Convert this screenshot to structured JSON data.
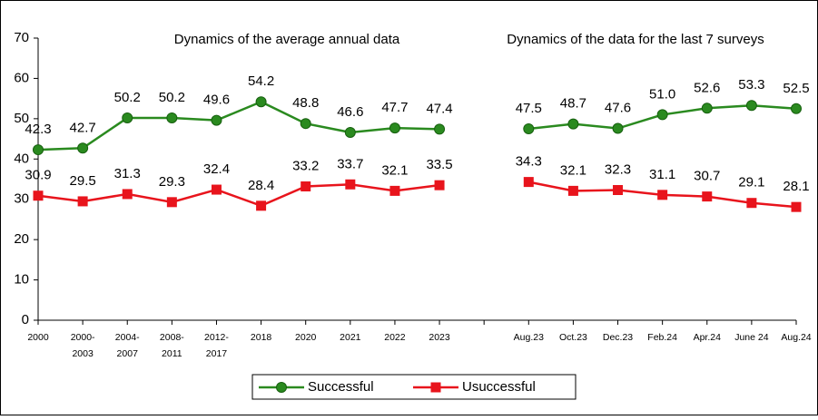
{
  "chart_data": {
    "type": "line",
    "annotations": [
      "Dynamics of the average annual data",
      "Dynamics of the data for the last 7 surveys"
    ],
    "categories": [
      "2000",
      "2000-\n2003",
      "2004-\n2007",
      "2008-\n2011",
      "2012-\n2017",
      "2018",
      "2020",
      "2021",
      "2022",
      "2023",
      null,
      "Aug.23",
      "Oct.23",
      "Dec.23",
      "Feb.24",
      "Apr.24",
      "June  24",
      "Aug.24"
    ],
    "series": [
      {
        "name": "Successful",
        "color": "#2a8a1f",
        "marker": "circle",
        "values": [
          42.3,
          42.7,
          50.2,
          50.2,
          49.6,
          54.2,
          48.8,
          46.6,
          47.7,
          47.4,
          null,
          47.5,
          48.7,
          47.6,
          51.0,
          52.6,
          53.3,
          52.5
        ],
        "value_labels": [
          "42.3",
          "42.7",
          "50.2",
          "50.2",
          "49.6",
          "54.2",
          "48.8",
          "46.6",
          "47.7",
          "47.4",
          null,
          "47.5",
          "48.7",
          "47.6",
          "51.0",
          "52.6",
          "53.3",
          "52.5"
        ]
      },
      {
        "name": "Usuccessful",
        "color": "#e8141c",
        "marker": "square",
        "values": [
          30.9,
          29.5,
          31.3,
          29.3,
          32.4,
          28.4,
          33.2,
          33.7,
          32.1,
          33.5,
          null,
          34.3,
          32.1,
          32.3,
          31.1,
          30.7,
          29.1,
          28.1
        ],
        "value_labels": [
          "30.9",
          "29.5",
          "31.3",
          "29.3",
          "32.4",
          "28.4",
          "33.2",
          "33.7",
          "32.1",
          "33.5",
          null,
          "34.3",
          "32.1",
          "32.3",
          "31.1",
          "30.7",
          "29.1",
          "28.1"
        ]
      }
    ],
    "ylim": [
      0,
      70
    ],
    "yticks": [
      0,
      10,
      20,
      30,
      40,
      50,
      60,
      70
    ],
    "grid": false,
    "legend": "bottom"
  }
}
